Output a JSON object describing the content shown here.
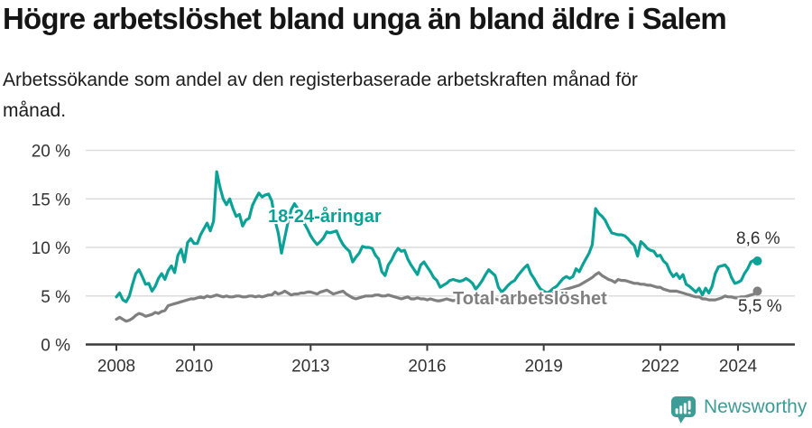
{
  "header": {
    "title": "Högre arbetslöshet bland unga än bland äldre i Salem",
    "subtitle_lines": [
      "Arbetssökande som andel av den registerbaserade arbetskraften månad för",
      "månad."
    ]
  },
  "chart_data": {
    "type": "line",
    "title": "Högre arbetslöshet bland unga än bland äldre i Salem",
    "subtitle": "Arbetssökande som andel av den registerbaserade arbetskraften månad för månad.",
    "unit": "%",
    "grid": "horizontal",
    "legend_position": "inline-annotations",
    "x_axis": {
      "ticks": [
        2008,
        2010,
        2013,
        2016,
        2019,
        2022,
        2024
      ],
      "tick_labels": [
        "2008",
        "2010",
        "2013",
        "2016",
        "2019",
        "2022",
        "2024"
      ],
      "range": [
        2007.2,
        2025.5
      ]
    },
    "y_axis": {
      "ticks": [
        0,
        5,
        10,
        15,
        20
      ],
      "tick_labels": [
        "0 %",
        "5 %",
        "10 %",
        "15 %",
        "20 %"
      ],
      "range": [
        0,
        21
      ]
    },
    "series": [
      {
        "name": "18-24-åringar",
        "color": "#0aa296",
        "end_label": "8,6 %",
        "end_value": 8.6,
        "start_year": 2008,
        "cadence": "monthly",
        "values": [
          4.9,
          5.3,
          4.6,
          4.4,
          5.0,
          6.2,
          7.3,
          7.7,
          7.0,
          6.2,
          6.3,
          5.5,
          6.0,
          6.8,
          7.3,
          6.7,
          7.6,
          8.1,
          7.4,
          9.2,
          9.8,
          8.5,
          10.5,
          10.9,
          10.4,
          10.4,
          11.3,
          11.9,
          12.5,
          11.7,
          12.7,
          17.8,
          16.2,
          15.0,
          14.4,
          15.0,
          14.0,
          13.2,
          13.4,
          12.2,
          12.8,
          13.0,
          14.3,
          15.0,
          15.6,
          15.2,
          15.4,
          15.5,
          14.8,
          12.8,
          11.5,
          9.4,
          11.0,
          12.6,
          13.9,
          14.5,
          14.0,
          13.4,
          12.5,
          11.9,
          11.2,
          10.7,
          10.3,
          10.6,
          11.0,
          11.6,
          11.5,
          11.6,
          11.7,
          10.9,
          10.3,
          9.9,
          9.6,
          8.5,
          9.0,
          9.4,
          10.1,
          10.0,
          10.0,
          9.9,
          9.2,
          8.8,
          7.5,
          7.1,
          8.2,
          8.7,
          9.4,
          9.9,
          9.6,
          9.7,
          8.8,
          8.2,
          7.7,
          7.2,
          8.2,
          8.5,
          8.0,
          7.5,
          6.9,
          6.6,
          5.9,
          6.1,
          6.3,
          6.6,
          6.7,
          6.6,
          6.5,
          6.6,
          6.8,
          6.6,
          6.3,
          5.7,
          6.1,
          6.6,
          7.2,
          7.7,
          7.4,
          7.1,
          5.9,
          5.4,
          5.7,
          6.1,
          6.4,
          6.6,
          7.1,
          7.5,
          7.9,
          8.2,
          7.3,
          6.8,
          6.2,
          5.7,
          5.5,
          5.3,
          5.5,
          5.8,
          6.0,
          6.4,
          6.8,
          7.0,
          6.8,
          7.0,
          7.8,
          7.5,
          8.2,
          8.8,
          9.4,
          10.3,
          14.0,
          13.5,
          13.2,
          12.8,
          12.1,
          11.5,
          11.4,
          11.3,
          11.3,
          11.2,
          10.9,
          10.5,
          10.2,
          9.1,
          10.6,
          10.3,
          9.9,
          9.7,
          9.6,
          9.1,
          9.2,
          8.6,
          8.3,
          7.5,
          7.0,
          7.3,
          6.8,
          7.2,
          6.2,
          6.0,
          5.7,
          5.4,
          5.8,
          5.1,
          5.8,
          5.3,
          6.0,
          7.3,
          8.0,
          8.1,
          8.2,
          7.8,
          6.9,
          6.3,
          6.4,
          6.6,
          7.3,
          7.8,
          8.5,
          8.7,
          8.6
        ]
      },
      {
        "name": "Total arbetslöshet",
        "color": "#7f7f7f",
        "end_label": "5,5 %",
        "end_value": 5.5,
        "start_year": 2008,
        "cadence": "monthly",
        "values": [
          2.6,
          2.8,
          2.6,
          2.4,
          2.5,
          2.7,
          3.0,
          3.2,
          3.1,
          2.9,
          3.0,
          3.1,
          3.3,
          3.2,
          3.4,
          3.5,
          4.0,
          4.1,
          4.2,
          4.3,
          4.4,
          4.5,
          4.6,
          4.7,
          4.7,
          4.8,
          4.9,
          4.8,
          5.0,
          4.9,
          5.0,
          5.1,
          5.0,
          4.9,
          5.0,
          4.9,
          4.9,
          5.0,
          5.0,
          4.9,
          4.9,
          5.0,
          5.0,
          4.9,
          5.0,
          4.9,
          5.0,
          5.1,
          5.1,
          5.4,
          5.2,
          5.3,
          5.5,
          5.3,
          5.1,
          5.2,
          5.2,
          5.3,
          5.3,
          5.4,
          5.4,
          5.3,
          5.2,
          5.4,
          5.5,
          5.6,
          5.4,
          5.2,
          5.3,
          5.4,
          5.5,
          5.2,
          5.0,
          4.8,
          4.7,
          4.8,
          4.9,
          5.0,
          5.0,
          5.0,
          5.1,
          5.1,
          5.0,
          5.0,
          5.1,
          5.0,
          4.9,
          4.8,
          4.7,
          4.8,
          4.9,
          4.7,
          4.7,
          4.8,
          4.7,
          4.7,
          4.6,
          4.7,
          4.6,
          4.5,
          4.5,
          4.6,
          4.7,
          4.6,
          4.5,
          4.6,
          4.5,
          4.6,
          4.6,
          4.7,
          4.6,
          4.6,
          4.5,
          4.6,
          4.7,
          4.6,
          4.6,
          4.7,
          4.6,
          4.6,
          4.6,
          4.6,
          4.7,
          4.7,
          4.7,
          4.8,
          4.8,
          4.8,
          4.9,
          4.9,
          5.0,
          5.0,
          5.1,
          5.1,
          5.2,
          5.3,
          5.4,
          5.5,
          5.6,
          5.7,
          5.8,
          5.9,
          6.0,
          6.1,
          6.3,
          6.5,
          6.7,
          6.9,
          7.2,
          7.4,
          7.1,
          6.9,
          6.7,
          6.6,
          6.4,
          6.7,
          6.6,
          6.6,
          6.5,
          6.4,
          6.3,
          6.3,
          6.2,
          6.2,
          6.1,
          6.1,
          6.0,
          5.9,
          5.9,
          5.7,
          5.6,
          5.5,
          5.5,
          5.5,
          5.4,
          5.3,
          5.2,
          5.1,
          5.0,
          4.9,
          4.9,
          4.7,
          4.7,
          4.6,
          4.6,
          4.6,
          4.7,
          4.8,
          5.0,
          4.9,
          4.9,
          4.8,
          4.8,
          4.9,
          4.9,
          5.0,
          5.1,
          5.2,
          5.5
        ]
      }
    ]
  },
  "colors": {
    "accent_teal": "#0aa296",
    "series_gray": "#7f7f7f",
    "axis": "#3c3c3c",
    "grid": "#dcdcdc",
    "tick_text": "#333333",
    "logo_teal": "#3d9c96"
  },
  "footer": {
    "brand": "Newsworthy",
    "icon": "newsworthy-speech-bubble-bar-chart-icon"
  }
}
